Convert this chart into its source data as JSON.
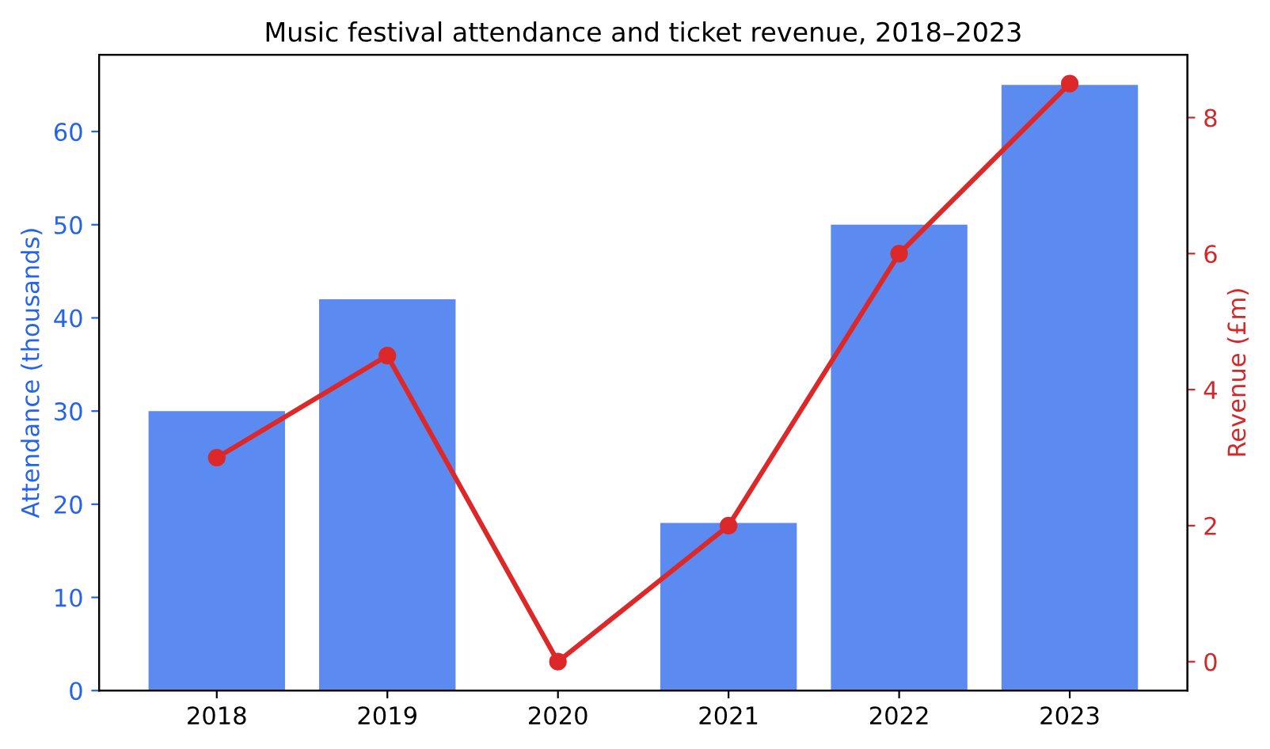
{
  "chart_data": {
    "type": "bar",
    "title": "Music festival attendance and ticket revenue, 2018–2023",
    "categories": [
      "2018",
      "2019",
      "2020",
      "2021",
      "2022",
      "2023"
    ],
    "ylabel": "Attendance (thousands)",
    "y2label": "Revenue (£m)",
    "series": [
      {
        "name": null,
        "color": "#5b8af0",
        "values": [
          30,
          42,
          0,
          18,
          50,
          65
        ]
      },
      {
        "name": null,
        "type": "line",
        "axis": "y2",
        "color": "#dc2828",
        "marker": "circle",
        "line_style": "solid",
        "values": [
          3,
          4.5,
          0,
          2,
          6,
          8.5
        ]
      }
    ],
    "ylim": [
      0,
      68.25
    ],
    "yticks": [
      0,
      10,
      20,
      30,
      40,
      50,
      60
    ],
    "y2lim": [
      -0.425,
      8.925
    ],
    "y2ticks": [
      0,
      2,
      4,
      6,
      8
    ],
    "grid": false
  }
}
